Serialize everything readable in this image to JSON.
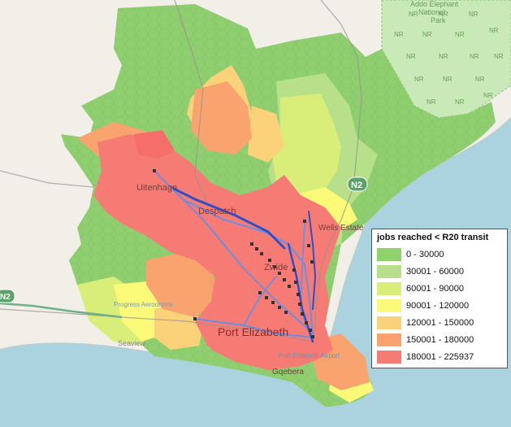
{
  "map": {
    "places": {
      "uitenhage": "Uitenhage",
      "despatch": "Despatch",
      "zwide": "Zwide",
      "wells_estate": "Wells Estate",
      "port_elizabeth": "Port Elizabeth",
      "gqebera": "Gqebera",
      "airport": "Port Elizabeth Airport",
      "seaview": "Seaview",
      "aerodrome": "Progress Aerodrome"
    },
    "road_shields": {
      "n2_east": "N2",
      "n2_west": "N2"
    },
    "park": {
      "name_line1": "Addo Elephant",
      "name_line2": "National",
      "name_line3": "Park",
      "marker": "NR"
    }
  },
  "legend": {
    "title": "jobs reached < R20 transit",
    "items": [
      {
        "label": "0 - 30000",
        "color": "#8fd16a"
      },
      {
        "label": "30001 - 60000",
        "color": "#b8e08a"
      },
      {
        "label": "60001 - 90000",
        "color": "#d9ee78"
      },
      {
        "label": "90001 - 120000",
        "color": "#fbfa78"
      },
      {
        "label": "120001 - 150000",
        "color": "#fbd27a"
      },
      {
        "label": "150001 - 180000",
        "color": "#f9a36e"
      },
      {
        "label": "180001 - 225937",
        "color": "#f77b75"
      }
    ]
  }
}
